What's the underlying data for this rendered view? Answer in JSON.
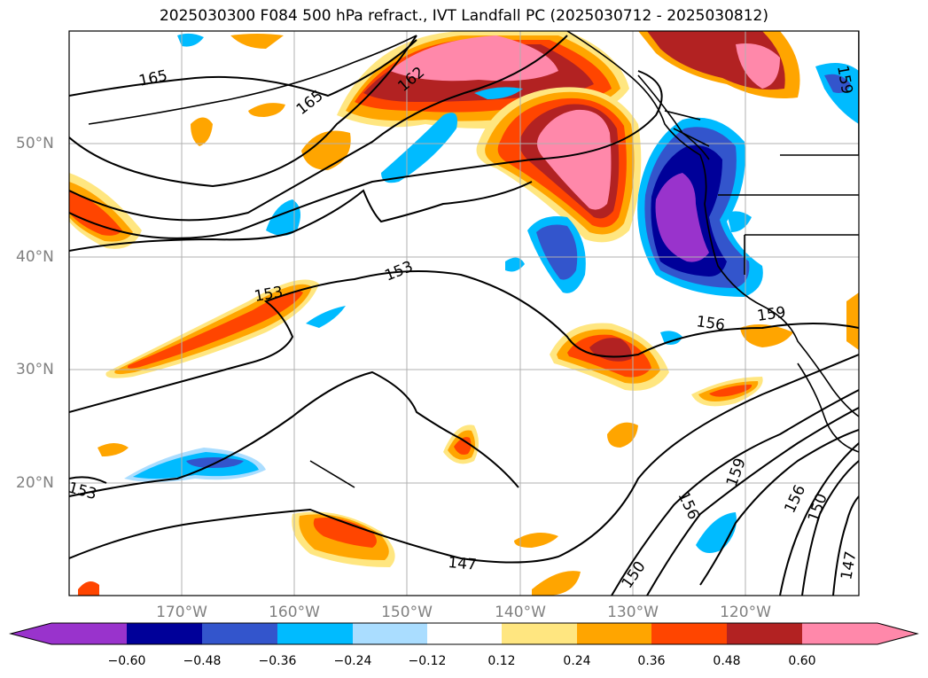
{
  "title": "2025030300 F084 500 hPa refract., IVT Landfall PC (2025030712 - 2025030812)",
  "lat_labels": [
    "50°N",
    "40°N",
    "30°N",
    "20°N"
  ],
  "lon_labels": [
    "170°W",
    "160°W",
    "150°W",
    "140°W",
    "130°W",
    "120°W"
  ],
  "contour_labels": [
    "165",
    "165",
    "162",
    "153",
    "153",
    "153",
    "156",
    "159",
    "159",
    "156",
    "156",
    "150",
    "150",
    "147",
    "147",
    "159"
  ],
  "colorbar": {
    "ticks": [
      "−0.60",
      "−0.48",
      "−0.36",
      "−0.24",
      "−0.12",
      "0.12",
      "0.24",
      "0.36",
      "0.48",
      "0.60"
    ],
    "colors": [
      "#9933cc",
      "#000099",
      "#3355cc",
      "#00bbff",
      "#aaddff",
      "#ffffff",
      "#ffe680",
      "#ffa500",
      "#ff4500",
      "#b22222",
      "#ff88aa"
    ]
  },
  "palette": {
    "gridline": "#b0b0b0",
    "coast": "#000000"
  }
}
